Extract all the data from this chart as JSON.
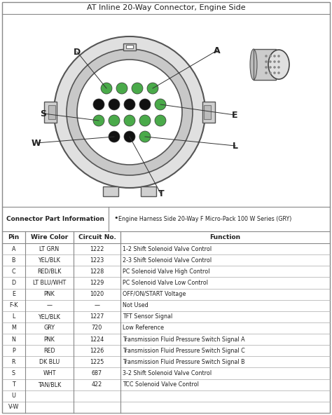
{
  "title": "AT Inline 20-Way Connector, Engine Side",
  "connector_info_label": "Connector Part Information",
  "connector_info_bullet": "Engine Harness Side 20-Way F Micro-Pack 100 W Series (GRY)",
  "table_headers": [
    "Pin",
    "Wire Color",
    "Circuit No.",
    "Function"
  ],
  "table_rows": [
    [
      "A",
      "LT GRN",
      "1222",
      "1-2 Shift Solenoid Valve Control"
    ],
    [
      "B",
      "YEL/BLK",
      "1223",
      "2-3 Shift Solenoid Valve Control"
    ],
    [
      "C",
      "RED/BLK",
      "1228",
      "PC Solenoid Valve High Control"
    ],
    [
      "D",
      "LT BLU/WHT",
      "1229",
      "PC Solenoid Valve Low Control"
    ],
    [
      "E",
      "PNK",
      "1020",
      "OFF/ON/START Voltage"
    ],
    [
      "F-K",
      "—",
      "—",
      "Not Used"
    ],
    [
      "L",
      "YEL/BLK",
      "1227",
      "TFT Sensor Signal"
    ],
    [
      "M",
      "GRY",
      "720",
      "Low Reference"
    ],
    [
      "N",
      "PNK",
      "1224",
      "Transmission Fluid Pressure Switch Signal A"
    ],
    [
      "P",
      "RED",
      "1226",
      "Transmission Fluid Pressure Switch Signal C"
    ],
    [
      "R",
      "DK BLU",
      "1225",
      "Transmission Fluid Pressure Switch Signal B"
    ],
    [
      "S",
      "WHT",
      "687",
      "3-2 Shift Solenoid Valve Control"
    ],
    [
      "T",
      "TAN/BLK",
      "422",
      "TCC Solenoid Valve Control"
    ],
    [
      "U",
      "",
      "",
      ""
    ],
    [
      "V-W",
      "",
      "",
      ""
    ]
  ],
  "bg_color": "#ffffff",
  "green_color": "#4aaa4a",
  "black_dot_color": "#111111",
  "border_color": "#888888",
  "text_color": "#222222"
}
